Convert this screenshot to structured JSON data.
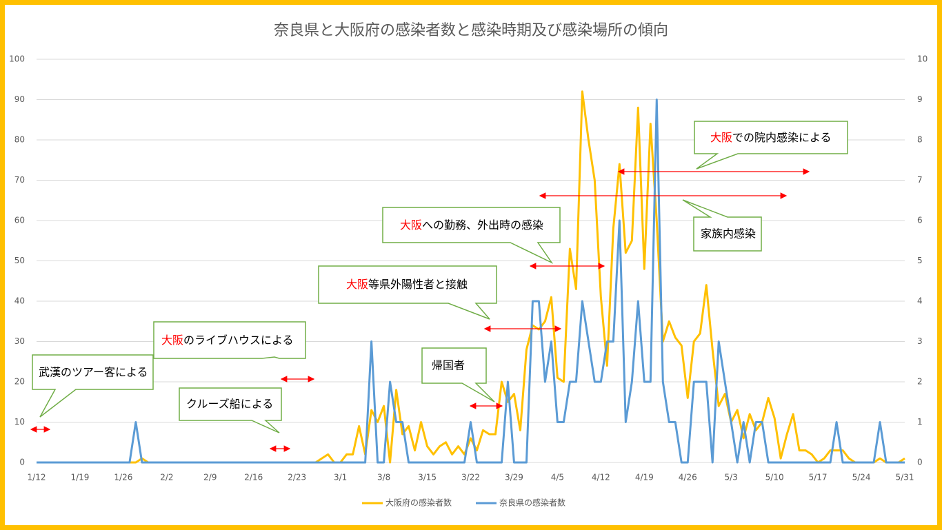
{
  "chart_data": {
    "type": "line",
    "title": "奈良県と大阪府の感染者数と感染時期及び感染場所の傾向",
    "categories": [
      "1/12",
      null,
      null,
      null,
      null,
      null,
      null,
      "1/19",
      null,
      null,
      null,
      null,
      null,
      null,
      "1/26",
      null,
      null,
      null,
      null,
      null,
      null,
      "2/2",
      null,
      null,
      null,
      null,
      null,
      null,
      "2/9",
      null,
      null,
      null,
      null,
      null,
      null,
      "2/16",
      null,
      null,
      null,
      null,
      null,
      null,
      "2/23",
      null,
      null,
      null,
      null,
      null,
      null,
      "3/1",
      null,
      null,
      null,
      null,
      null,
      null,
      "3/8",
      null,
      null,
      null,
      null,
      null,
      null,
      "3/15",
      null,
      null,
      null,
      null,
      null,
      null,
      "3/22",
      null,
      null,
      null,
      null,
      null,
      null,
      "3/29",
      null,
      null,
      null,
      null,
      null,
      null,
      "4/5",
      null,
      null,
      null,
      null,
      null,
      null,
      "4/12",
      null,
      null,
      null,
      null,
      null,
      null,
      "4/19",
      null,
      null,
      null,
      null,
      null,
      null,
      "4/26",
      null,
      null,
      null,
      null,
      null,
      null,
      "5/3",
      null,
      null,
      null,
      null,
      null,
      null,
      "5/10",
      null,
      null,
      null,
      null,
      null,
      null,
      "5/17",
      null,
      null,
      null,
      null,
      null,
      null,
      "5/24",
      null,
      null,
      null,
      null,
      null,
      null,
      "5/31"
    ],
    "series": [
      {
        "name": "大阪府の感染者数",
        "color": "#ffc000",
        "axis": "y",
        "values": [
          0,
          0,
          0,
          0,
          0,
          0,
          0,
          0,
          0,
          0,
          0,
          0,
          0,
          0,
          0,
          0,
          0,
          1,
          0,
          0,
          0,
          0,
          0,
          0,
          0,
          0,
          0,
          0,
          0,
          0,
          0,
          0,
          0,
          0,
          0,
          0,
          0,
          0,
          0,
          0,
          0,
          0,
          0,
          0,
          0,
          0,
          1,
          2,
          0,
          0,
          2,
          2,
          9,
          2,
          13,
          10,
          14,
          0,
          18,
          7,
          9,
          3,
          10,
          4,
          2,
          4,
          5,
          2,
          4,
          2,
          6,
          3,
          8,
          7,
          7,
          20,
          15,
          17,
          8,
          28,
          34,
          33,
          35,
          41,
          21,
          20,
          53,
          43,
          92,
          80,
          70,
          41,
          24,
          58,
          74,
          52,
          55,
          88,
          48,
          84,
          60,
          30,
          35,
          31,
          29,
          16,
          30,
          32,
          44,
          28,
          14,
          17,
          10,
          13,
          6,
          12,
          8,
          10,
          16,
          11,
          1,
          7,
          12,
          3,
          3,
          2,
          0,
          1,
          3,
          3,
          3,
          1,
          0,
          0,
          0,
          0,
          1,
          0,
          0,
          0,
          1
        ]
      },
      {
        "name": "奈良県の感染者数",
        "color": "#5b9bd5",
        "axis": "y2",
        "values": [
          0,
          0,
          0,
          0,
          0,
          0,
          0,
          0,
          0,
          0,
          0,
          0,
          0,
          0,
          0,
          0,
          1,
          0,
          0,
          0,
          0,
          0,
          0,
          0,
          0,
          0,
          0,
          0,
          0,
          0,
          0,
          0,
          0,
          0,
          0,
          0,
          0,
          0,
          0,
          0,
          0,
          0,
          0,
          0,
          0,
          0,
          0,
          0,
          0,
          0,
          0,
          0,
          0,
          0,
          3,
          0,
          0,
          2,
          1,
          1,
          0,
          0,
          0,
          0,
          0,
          0,
          0,
          0,
          0,
          0,
          1,
          0,
          0,
          0,
          0,
          0,
          2,
          0,
          0,
          0,
          4,
          4,
          2,
          3,
          1,
          1,
          2,
          2,
          4,
          3,
          2,
          2,
          3,
          3,
          6,
          1,
          2,
          4,
          2,
          2,
          9,
          2,
          1,
          1,
          0,
          0,
          2,
          2,
          2,
          0,
          3,
          2,
          1,
          0,
          1,
          0,
          1,
          1,
          0,
          0,
          0,
          0,
          0,
          0,
          0,
          0,
          0,
          0,
          0,
          1,
          0,
          0,
          0,
          0,
          0,
          0,
          1,
          0,
          0,
          0,
          0
        ]
      }
    ],
    "ylim": [
      0,
      100
    ],
    "yticks": [
      0,
      10,
      20,
      30,
      40,
      50,
      60,
      70,
      80,
      90,
      100
    ],
    "y2lim": [
      0,
      10
    ],
    "y2ticks": [
      0,
      1,
      2,
      3,
      4,
      5,
      6,
      7,
      8,
      9,
      10
    ],
    "grid": true,
    "legend": "bottom",
    "annotations": [
      {
        "text": "武漢のツアー客による"
      },
      {
        "highlight": "大阪",
        "text": "のライブハウスによる"
      },
      {
        "text": "クルーズ船による"
      },
      {
        "text": "帰国者"
      },
      {
        "highlight": "大阪",
        "text": "等県外陽性者と接触"
      },
      {
        "highlight": "大阪",
        "text": "への勤務、外出時の感染"
      },
      {
        "highlight": "大阪",
        "text": "での院内感染による"
      },
      {
        "text": "家族内感染"
      }
    ]
  }
}
